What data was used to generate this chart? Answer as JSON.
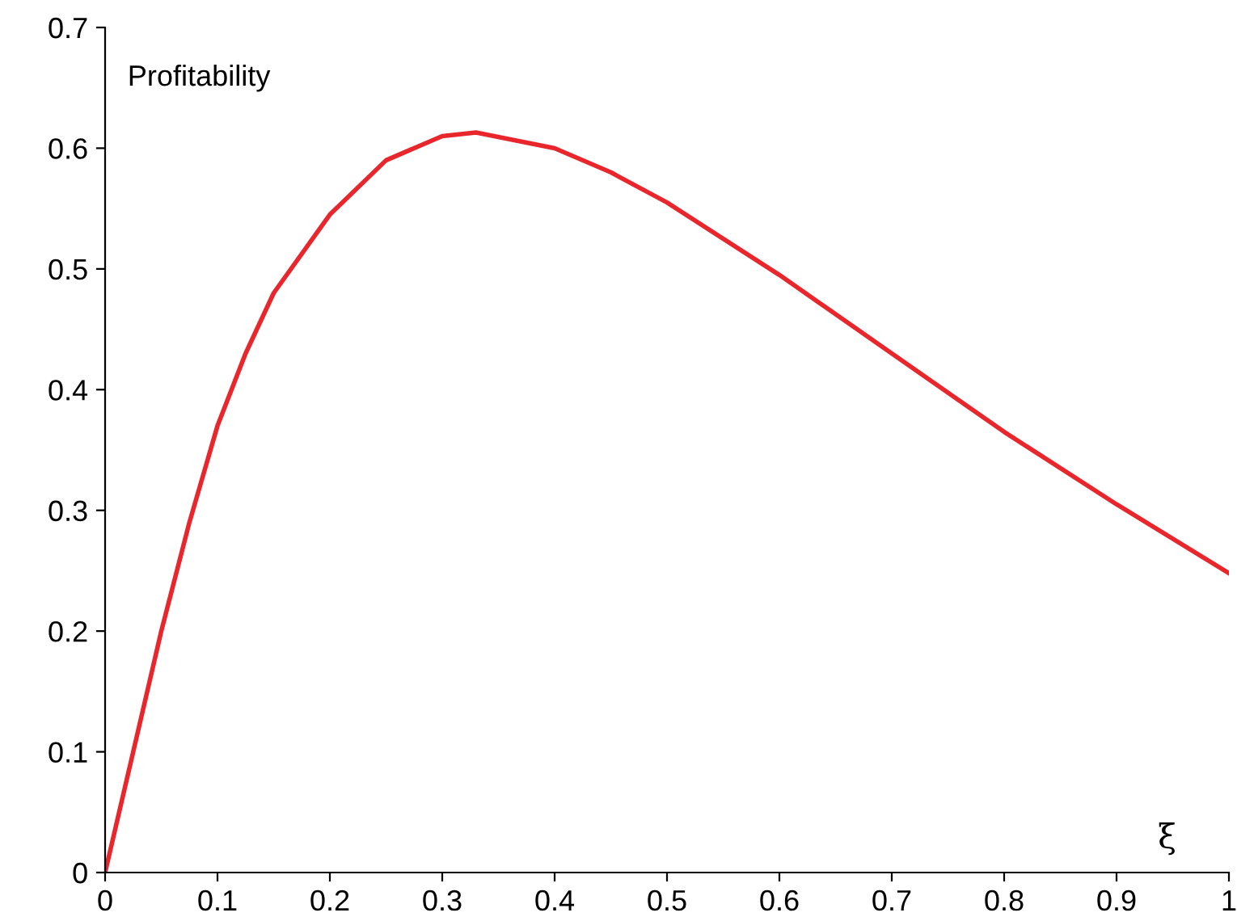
{
  "chart_data": {
    "type": "line",
    "xlabel": "ξ",
    "ylabel": "Profitability",
    "x": [
      0,
      0.025,
      0.05,
      0.075,
      0.1,
      0.125,
      0.15,
      0.2,
      0.25,
      0.3,
      0.33,
      0.4,
      0.45,
      0.5,
      0.6,
      0.7,
      0.8,
      0.9,
      1
    ],
    "series": [
      {
        "color": "#e8262c",
        "values": [
          0,
          0.1,
          0.2,
          0.29,
          0.37,
          0.43,
          0.48,
          0.545,
          0.59,
          0.61,
          0.613,
          0.6,
          0.58,
          0.555,
          0.495,
          0.43,
          0.365,
          0.305,
          0.248
        ]
      }
    ],
    "xlim": [
      0,
      1
    ],
    "ylim": [
      0,
      0.7
    ],
    "xticks": [
      0,
      0.1,
      0.2,
      0.3,
      0.4,
      0.5,
      0.6,
      0.7,
      0.8,
      0.9,
      1
    ],
    "yticks": [
      0,
      0.1,
      0.2,
      0.3,
      0.4,
      0.5,
      0.6,
      0.7
    ],
    "grid": false,
    "legend": false
  }
}
